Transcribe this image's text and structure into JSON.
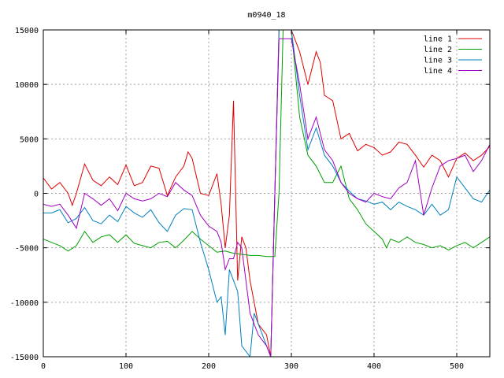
{
  "chart_data": {
    "type": "line",
    "title": "m0940_18",
    "xlabel": "",
    "ylabel": "",
    "xlim": [
      0,
      540
    ],
    "ylim": [
      -15000,
      15000
    ],
    "grid": true,
    "legend_position": "top-right",
    "x_ticks": [
      0,
      100,
      200,
      300,
      400,
      500
    ],
    "y_ticks": [
      -15000,
      -10000,
      -5000,
      0,
      5000,
      10000,
      15000
    ],
    "x_tick_labels": [
      "0",
      "100",
      "200",
      "300",
      "400",
      "500"
    ],
    "y_tick_labels": [
      "-15000",
      "-10000",
      "-5000",
      "0",
      "5000",
      "10000",
      "15000"
    ],
    "series": [
      {
        "name": "line 1",
        "color": "#e00000",
        "points": [
          [
            0,
            1400
          ],
          [
            10,
            400
          ],
          [
            20,
            1000
          ],
          [
            30,
            0
          ],
          [
            35,
            -1100
          ],
          [
            40,
            0
          ],
          [
            50,
            2700
          ],
          [
            60,
            1200
          ],
          [
            70,
            700
          ],
          [
            80,
            1500
          ],
          [
            90,
            800
          ],
          [
            100,
            2600
          ],
          [
            110,
            700
          ],
          [
            120,
            1000
          ],
          [
            130,
            2500
          ],
          [
            140,
            2300
          ],
          [
            150,
            -200
          ],
          [
            160,
            1500
          ],
          [
            170,
            2500
          ],
          [
            175,
            3800
          ],
          [
            180,
            3200
          ],
          [
            190,
            0
          ],
          [
            200,
            -200
          ],
          [
            210,
            1800
          ],
          [
            215,
            -1000
          ],
          [
            220,
            -5000
          ],
          [
            225,
            -2000
          ],
          [
            230,
            8500
          ],
          [
            235,
            -8000
          ],
          [
            240,
            -4000
          ],
          [
            245,
            -5000
          ],
          [
            250,
            -8000
          ],
          [
            260,
            -12000
          ],
          [
            270,
            -13000
          ],
          [
            275,
            -15000
          ],
          [
            280,
            0
          ],
          [
            285,
            15000
          ],
          [
            300,
            15000
          ],
          [
            310,
            13000
          ],
          [
            320,
            10000
          ],
          [
            330,
            13000
          ],
          [
            335,
            12000
          ],
          [
            340,
            9000
          ],
          [
            350,
            8500
          ],
          [
            360,
            5000
          ],
          [
            370,
            5500
          ],
          [
            380,
            3900
          ],
          [
            390,
            4500
          ],
          [
            400,
            4200
          ],
          [
            410,
            3500
          ],
          [
            420,
            3800
          ],
          [
            430,
            4700
          ],
          [
            440,
            4500
          ],
          [
            450,
            3500
          ],
          [
            460,
            2400
          ],
          [
            470,
            3500
          ],
          [
            480,
            3000
          ],
          [
            490,
            1500
          ],
          [
            500,
            3200
          ],
          [
            510,
            3700
          ],
          [
            520,
            3000
          ],
          [
            530,
            3500
          ],
          [
            540,
            4300
          ]
        ]
      },
      {
        "name": "line 2",
        "color": "#00a000",
        "points": [
          [
            0,
            -4200
          ],
          [
            10,
            -4500
          ],
          [
            20,
            -4800
          ],
          [
            30,
            -5300
          ],
          [
            40,
            -4800
          ],
          [
            50,
            -3500
          ],
          [
            60,
            -4500
          ],
          [
            70,
            -4000
          ],
          [
            80,
            -3800
          ],
          [
            90,
            -4500
          ],
          [
            100,
            -3800
          ],
          [
            110,
            -4600
          ],
          [
            120,
            -4800
          ],
          [
            130,
            -5000
          ],
          [
            140,
            -4500
          ],
          [
            150,
            -4400
          ],
          [
            160,
            -5000
          ],
          [
            170,
            -4300
          ],
          [
            180,
            -3500
          ],
          [
            190,
            -4200
          ],
          [
            200,
            -4800
          ],
          [
            210,
            -5400
          ],
          [
            220,
            -5300
          ],
          [
            230,
            -5500
          ],
          [
            240,
            -5600
          ],
          [
            250,
            -5700
          ],
          [
            260,
            -5700
          ],
          [
            270,
            -5800
          ],
          [
            280,
            -5800
          ],
          [
            285,
            0
          ],
          [
            290,
            15000
          ],
          [
            300,
            15000
          ],
          [
            310,
            7000
          ],
          [
            320,
            3500
          ],
          [
            330,
            2500
          ],
          [
            340,
            1000
          ],
          [
            350,
            1000
          ],
          [
            360,
            2500
          ],
          [
            370,
            -500
          ],
          [
            380,
            -1500
          ],
          [
            390,
            -2800
          ],
          [
            400,
            -3500
          ],
          [
            410,
            -4200
          ],
          [
            415,
            -5000
          ],
          [
            420,
            -4200
          ],
          [
            430,
            -4500
          ],
          [
            440,
            -4000
          ],
          [
            450,
            -4500
          ],
          [
            460,
            -4700
          ],
          [
            470,
            -5000
          ],
          [
            480,
            -4800
          ],
          [
            490,
            -5200
          ],
          [
            500,
            -4800
          ],
          [
            510,
            -4500
          ],
          [
            520,
            -5000
          ],
          [
            530,
            -4500
          ],
          [
            540,
            -4000
          ]
        ]
      },
      {
        "name": "line 3",
        "color": "#0080c0",
        "points": [
          [
            0,
            -1800
          ],
          [
            10,
            -1800
          ],
          [
            20,
            -1500
          ],
          [
            30,
            -2700
          ],
          [
            40,
            -2300
          ],
          [
            50,
            -1300
          ],
          [
            60,
            -2500
          ],
          [
            70,
            -2800
          ],
          [
            80,
            -2000
          ],
          [
            90,
            -2600
          ],
          [
            100,
            -1200
          ],
          [
            110,
            -1800
          ],
          [
            120,
            -2200
          ],
          [
            130,
            -1500
          ],
          [
            140,
            -2700
          ],
          [
            150,
            -3500
          ],
          [
            160,
            -2000
          ],
          [
            170,
            -1400
          ],
          [
            180,
            -1500
          ],
          [
            190,
            -4500
          ],
          [
            200,
            -7000
          ],
          [
            210,
            -10000
          ],
          [
            215,
            -9500
          ],
          [
            220,
            -13000
          ],
          [
            225,
            -7000
          ],
          [
            230,
            -8000
          ],
          [
            235,
            -9000
          ],
          [
            240,
            -14000
          ],
          [
            250,
            -15000
          ],
          [
            255,
            -11000
          ],
          [
            260,
            -12000
          ],
          [
            265,
            -13000
          ],
          [
            270,
            -14000
          ],
          [
            275,
            -15000
          ],
          [
            280,
            0
          ],
          [
            285,
            15000
          ],
          [
            300,
            15000
          ],
          [
            310,
            9000
          ],
          [
            320,
            4000
          ],
          [
            330,
            6000
          ],
          [
            340,
            3500
          ],
          [
            350,
            2500
          ],
          [
            360,
            1000
          ],
          [
            370,
            200
          ],
          [
            380,
            -500
          ],
          [
            390,
            -700
          ],
          [
            400,
            -1000
          ],
          [
            410,
            -800
          ],
          [
            420,
            -1500
          ],
          [
            430,
            -800
          ],
          [
            440,
            -1200
          ],
          [
            450,
            -1500
          ],
          [
            460,
            -2000
          ],
          [
            470,
            -1000
          ],
          [
            480,
            -2000
          ],
          [
            490,
            -1500
          ],
          [
            500,
            1500
          ],
          [
            510,
            500
          ],
          [
            520,
            -500
          ],
          [
            530,
            -800
          ],
          [
            540,
            300
          ]
        ]
      },
      {
        "name": "line 4",
        "color": "#a000c0",
        "points": [
          [
            0,
            -1000
          ],
          [
            10,
            -1200
          ],
          [
            20,
            -1000
          ],
          [
            30,
            -2000
          ],
          [
            40,
            -3200
          ],
          [
            50,
            0
          ],
          [
            60,
            -500
          ],
          [
            70,
            -1100
          ],
          [
            80,
            -500
          ],
          [
            90,
            -1600
          ],
          [
            100,
            0
          ],
          [
            110,
            -500
          ],
          [
            120,
            -700
          ],
          [
            130,
            -500
          ],
          [
            140,
            0
          ],
          [
            150,
            -300
          ],
          [
            160,
            1000
          ],
          [
            170,
            300
          ],
          [
            180,
            -200
          ],
          [
            190,
            -2000
          ],
          [
            200,
            -3000
          ],
          [
            210,
            -3500
          ],
          [
            215,
            -4500
          ],
          [
            220,
            -7000
          ],
          [
            225,
            -6000
          ],
          [
            230,
            -6000
          ],
          [
            235,
            -4500
          ],
          [
            240,
            -5000
          ],
          [
            250,
            -11000
          ],
          [
            260,
            -13000
          ],
          [
            270,
            -14000
          ],
          [
            275,
            -15000
          ],
          [
            280,
            0
          ],
          [
            285,
            14200
          ],
          [
            300,
            14200
          ],
          [
            310,
            10000
          ],
          [
            320,
            5000
          ],
          [
            330,
            7000
          ],
          [
            340,
            4000
          ],
          [
            350,
            3000
          ],
          [
            360,
            1000
          ],
          [
            370,
            0
          ],
          [
            380,
            -500
          ],
          [
            390,
            -800
          ],
          [
            400,
            0
          ],
          [
            410,
            -300
          ],
          [
            420,
            -500
          ],
          [
            430,
            500
          ],
          [
            440,
            1000
          ],
          [
            450,
            3000
          ],
          [
            460,
            -2000
          ],
          [
            470,
            500
          ],
          [
            480,
            2500
          ],
          [
            490,
            3000
          ],
          [
            500,
            3200
          ],
          [
            510,
            3500
          ],
          [
            520,
            2000
          ],
          [
            530,
            3000
          ],
          [
            540,
            4500
          ]
        ]
      }
    ]
  }
}
